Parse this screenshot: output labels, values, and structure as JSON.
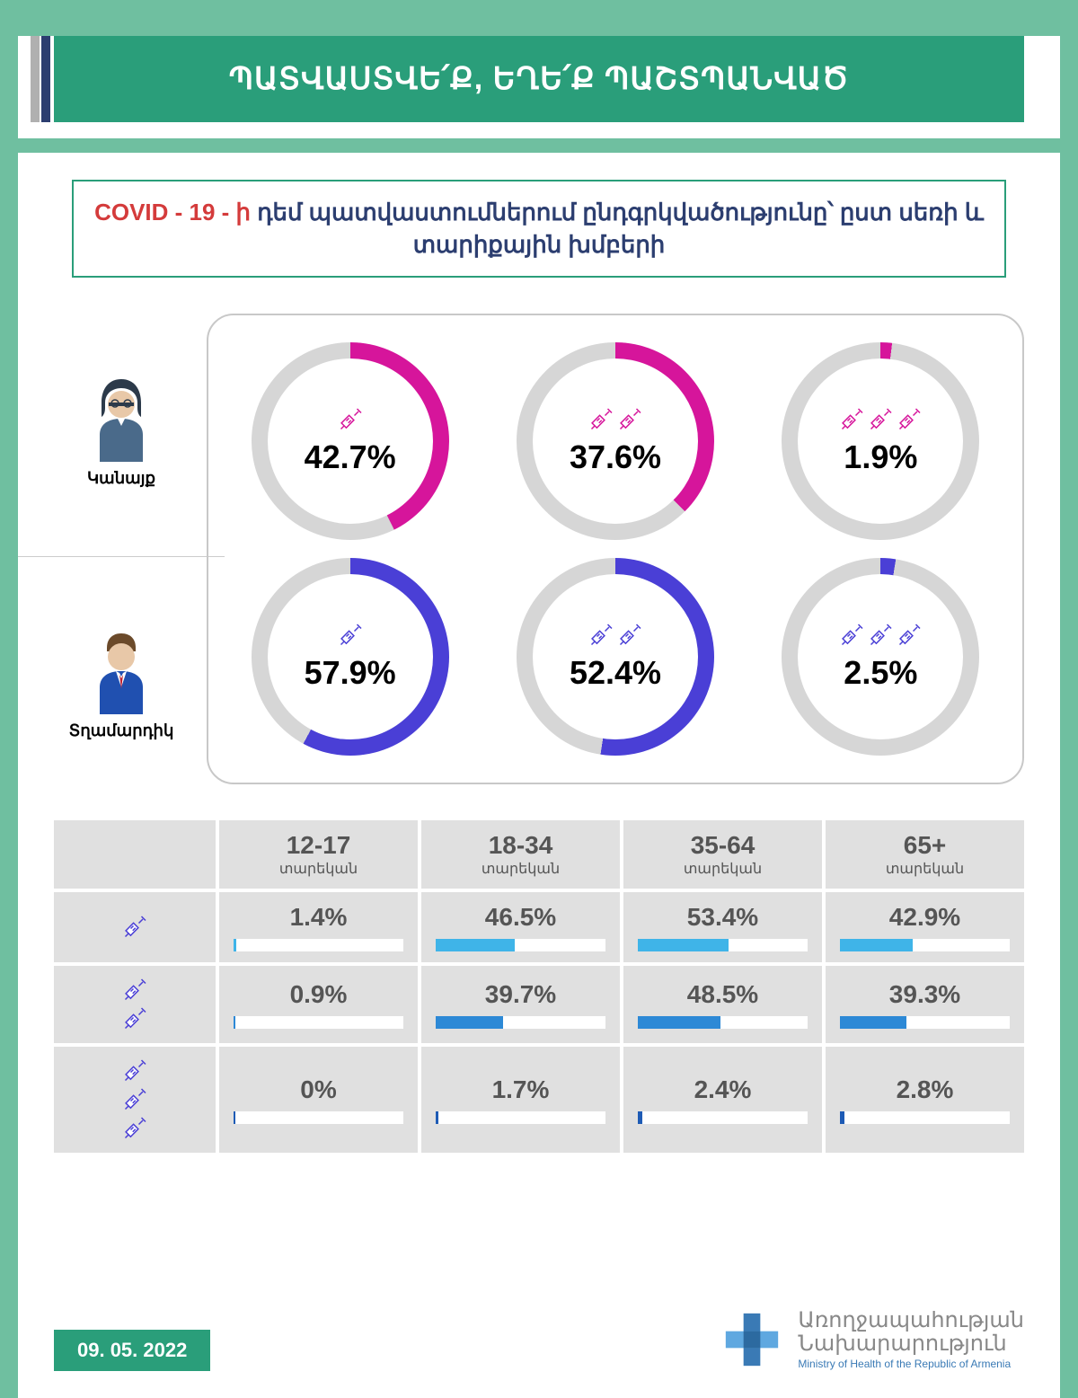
{
  "colors": {
    "page_bg": "#6fbfa0",
    "title_bg": "#2a9e7a",
    "title_text": "#ffffff",
    "covid_red": "#d43b3b",
    "covid_blue": "#2c3e70",
    "donut_track": "#d6d6d6",
    "donut_female": "#d6159b",
    "donut_male": "#4a3fd6",
    "cell_bg": "#e0e0e0",
    "bar_bg": "#ffffff",
    "bar_fill_1": "#3fb4e8",
    "bar_fill_2": "#2d89d6",
    "bar_fill_3": "#1e5bb5",
    "syringe_color": "#4a3fd6"
  },
  "title": "ՊԱՏՎԱՍՏՎԵ՛Ք, ԵՂԵ՛Ք ՊԱՇՏՊԱՆՎԱԾ",
  "subtitle_covid": "COVID - 19 - ի",
  "subtitle_rest": " դեմ պատվաստումներում ընդգրկվածությունը՝ ըստ սեռի և տարիքային խմբերի",
  "genders": [
    {
      "label": "Կանայք",
      "icon": "female",
      "color": "#d6159b",
      "doses": [
        {
          "count": 1,
          "pct": 42.7
        },
        {
          "count": 2,
          "pct": 37.6
        },
        {
          "count": 3,
          "pct": 1.9
        }
      ]
    },
    {
      "label": "Տղամարդիկ",
      "icon": "male",
      "color": "#4a3fd6",
      "doses": [
        {
          "count": 1,
          "pct": 57.9
        },
        {
          "count": 2,
          "pct": 52.4
        },
        {
          "count": 3,
          "pct": 2.5
        }
      ]
    }
  ],
  "age_table": {
    "age_sub_label": "տարեկան",
    "columns": [
      "12-17",
      "18-34",
      "35-64",
      "65+"
    ],
    "rows": [
      {
        "doses": 1,
        "bar_color": "#3fb4e8",
        "values": [
          1.4,
          46.5,
          53.4,
          42.9
        ]
      },
      {
        "doses": 2,
        "bar_color": "#2d89d6",
        "values": [
          0.9,
          39.7,
          48.5,
          39.3
        ]
      },
      {
        "doses": 3,
        "bar_color": "#1e5bb5",
        "values": [
          0,
          1.7,
          2.4,
          2.8
        ]
      }
    ]
  },
  "date": "09. 05. 2022",
  "ministry": {
    "line1": "Առողջապահության",
    "line2": "Նախարարություն",
    "en": "Ministry of Health of the Republic of Armenia"
  }
}
